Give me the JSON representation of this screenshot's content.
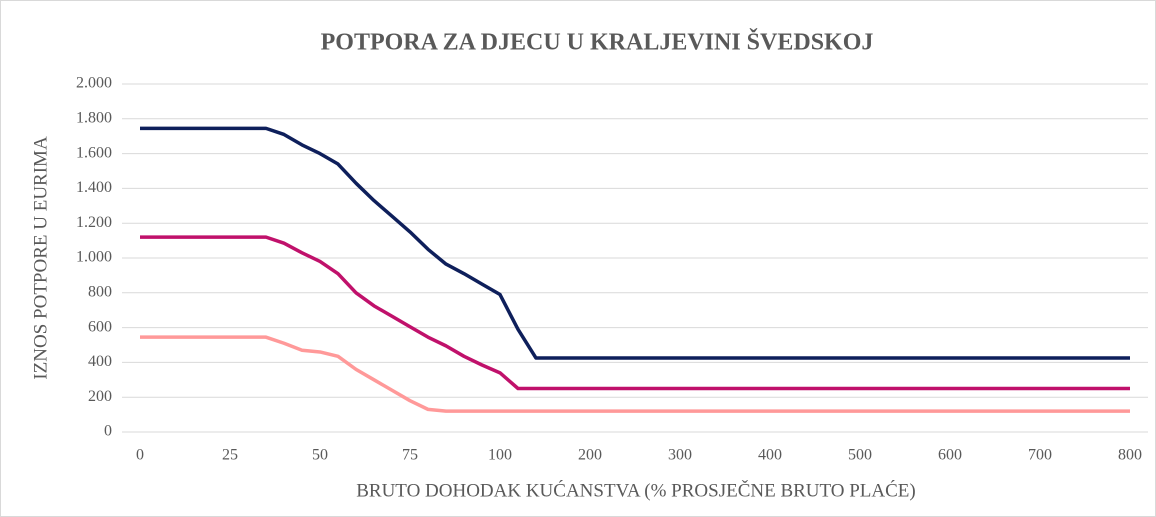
{
  "chart_data": {
    "type": "line",
    "title": "POTPORA ZA DJECU U KRALJEVINI ŠVEDSKOJ",
    "x_label": "BRUTO DOHODAK KUĆANSTVA (% PROSJEČNE BRUTO PLAĆE)",
    "y_label": "IZNOS POTPORE U EURIMA",
    "categories": [
      "0",
      null,
      null,
      null,
      null,
      "25",
      null,
      null,
      null,
      null,
      "50",
      null,
      null,
      null,
      null,
      "75",
      null,
      null,
      null,
      null,
      "100",
      null,
      null,
      null,
      null,
      "200",
      null,
      null,
      null,
      null,
      "300",
      null,
      null,
      null,
      null,
      "400",
      null,
      null,
      null,
      null,
      "500",
      null,
      null,
      null,
      null,
      "600",
      null,
      null,
      null,
      null,
      "700",
      null,
      null,
      null,
      null,
      "800"
    ],
    "series": [
      {
        "color": "#0e1f5b",
        "values": [
          1745,
          1745,
          1745,
          1745,
          1745,
          1745,
          1745,
          1745,
          1710,
          1650,
          1600,
          1540,
          1430,
          1330,
          1240,
          1150,
          1050,
          965,
          910,
          850,
          790,
          590,
          425,
          425,
          425,
          425,
          425,
          425,
          425,
          425,
          425,
          425,
          425,
          425,
          425,
          425,
          425,
          425,
          425,
          425,
          425,
          425,
          425,
          425,
          425,
          425,
          425,
          425,
          425,
          425,
          425,
          425,
          425,
          425,
          425,
          425
        ]
      },
      {
        "color": "#c0116b",
        "values": [
          1120,
          1120,
          1120,
          1120,
          1120,
          1120,
          1120,
          1120,
          1085,
          1030,
          980,
          910,
          800,
          725,
          665,
          605,
          545,
          495,
          435,
          385,
          340,
          250,
          250,
          250,
          250,
          250,
          250,
          250,
          250,
          250,
          250,
          250,
          250,
          250,
          250,
          250,
          250,
          250,
          250,
          250,
          250,
          250,
          250,
          250,
          250,
          250,
          250,
          250,
          250,
          250,
          250,
          250,
          250,
          250,
          250,
          250
        ]
      },
      {
        "color": "#ff9999",
        "values": [
          545,
          545,
          545,
          545,
          545,
          545,
          545,
          545,
          510,
          470,
          460,
          435,
          360,
          300,
          240,
          180,
          130,
          120,
          120,
          120,
          120,
          120,
          120,
          120,
          120,
          120,
          120,
          120,
          120,
          120,
          120,
          120,
          120,
          120,
          120,
          120,
          120,
          120,
          120,
          120,
          120,
          120,
          120,
          120,
          120,
          120,
          120,
          120,
          120,
          120,
          120,
          120,
          120,
          120,
          120,
          120
        ]
      }
    ],
    "ylim": [
      0,
      2000
    ],
    "yticks": [
      0,
      200,
      400,
      600,
      800,
      {
        "value": 1000,
        "label": "1.000"
      },
      {
        "value": 1200,
        "label": "1.200"
      },
      {
        "value": 1400,
        "label": "1.400"
      },
      {
        "value": 1600,
        "label": "1.600"
      },
      {
        "value": 1800,
        "label": "1.800"
      },
      {
        "value": 2000,
        "label": "2.000"
      }
    ],
    "grid": true
  }
}
